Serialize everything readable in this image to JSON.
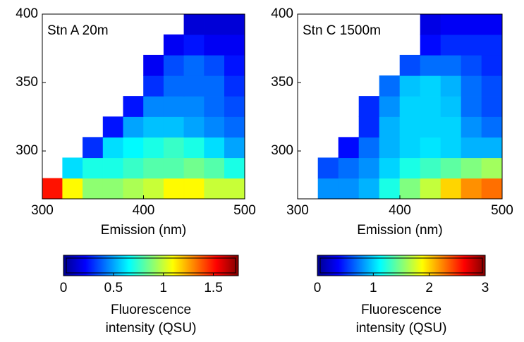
{
  "chart_data": [
    {
      "type": "heatmap",
      "annotation": "Stn A 20m",
      "xlabel": "Emission (nm)",
      "colormap": "jet",
      "x": [
        310,
        330,
        350,
        370,
        390,
        410,
        430,
        450,
        470,
        490
      ],
      "y": [
        272.5,
        287.5,
        302.5,
        317.5,
        332.5,
        347.5,
        362.5,
        377.5,
        392.5
      ],
      "z": [
        [
          1.5,
          1.1,
          0.9,
          0.9,
          0.95,
          1.0,
          1.1,
          1.1,
          1.0,
          1.0
        ],
        [
          null,
          0.6,
          0.7,
          0.7,
          0.75,
          0.8,
          0.8,
          0.85,
          0.8,
          0.7
        ],
        [
          null,
          null,
          0.3,
          0.6,
          0.65,
          0.7,
          0.75,
          0.7,
          0.6,
          0.5
        ],
        [
          null,
          null,
          null,
          0.25,
          0.5,
          0.55,
          0.55,
          0.5,
          0.45,
          0.4
        ],
        [
          null,
          null,
          null,
          null,
          0.25,
          0.45,
          0.45,
          0.45,
          0.4,
          0.35
        ],
        [
          null,
          null,
          null,
          null,
          null,
          0.3,
          0.4,
          0.4,
          0.4,
          0.3
        ],
        [
          null,
          null,
          null,
          null,
          null,
          0.2,
          0.35,
          0.4,
          0.35,
          0.25
        ],
        [
          null,
          null,
          null,
          null,
          null,
          null,
          0.2,
          0.25,
          0.2,
          0.2
        ],
        [
          null,
          null,
          null,
          null,
          null,
          null,
          null,
          0.15,
          0.15,
          0.15
        ]
      ],
      "xlim": [
        300,
        500
      ],
      "xticks": [
        300,
        400,
        500
      ],
      "ylim": [
        265,
        400
      ],
      "yticks": [
        300,
        350,
        400
      ],
      "colorbar": {
        "clim": [
          0,
          1.75
        ],
        "ticks": [
          0,
          0.5,
          1,
          1.5
        ],
        "label": [
          "Fluorescence",
          "intensity (QSU)"
        ]
      }
    },
    {
      "type": "heatmap",
      "annotation": "Stn C 1500m",
      "xlabel": "Emission (nm)",
      "colormap": "jet",
      "x": [
        310,
        330,
        350,
        370,
        390,
        410,
        430,
        450,
        470,
        490
      ],
      "y": [
        272.5,
        287.5,
        302.5,
        317.5,
        332.5,
        347.5,
        362.5,
        377.5,
        392.5
      ],
      "z": [
        [
          null,
          0.8,
          0.8,
          0.9,
          1.2,
          1.5,
          1.7,
          2.0,
          2.2,
          2.3
        ],
        [
          null,
          0.6,
          0.7,
          0.8,
          1.0,
          1.2,
          1.3,
          1.4,
          1.5,
          1.6
        ],
        [
          null,
          null,
          0.4,
          0.7,
          0.9,
          1.0,
          1.05,
          1.0,
          0.9,
          0.9
        ],
        [
          null,
          null,
          null,
          0.5,
          0.9,
          1.0,
          1.0,
          1.0,
          0.8,
          0.7
        ],
        [
          null,
          null,
          null,
          0.5,
          0.8,
          1.0,
          1.0,
          0.95,
          0.7,
          0.6
        ],
        [
          null,
          null,
          null,
          null,
          0.7,
          0.95,
          1.0,
          0.9,
          0.7,
          0.6
        ],
        [
          null,
          null,
          null,
          null,
          null,
          0.6,
          0.7,
          0.7,
          0.6,
          0.5
        ],
        [
          null,
          null,
          null,
          null,
          null,
          null,
          0.4,
          0.5,
          0.5,
          0.5
        ],
        [
          null,
          null,
          null,
          null,
          null,
          null,
          0.3,
          0.35,
          0.35,
          0.35
        ]
      ],
      "xlim": [
        300,
        500
      ],
      "xticks": [
        300,
        400,
        500
      ],
      "ylim": [
        265,
        400
      ],
      "yticks": [
        300,
        350,
        400
      ],
      "colorbar": {
        "clim": [
          0,
          3
        ],
        "ticks": [
          0,
          1,
          2,
          3
        ],
        "label": [
          "Fluorescence",
          "intensity (QSU)"
        ]
      }
    }
  ]
}
